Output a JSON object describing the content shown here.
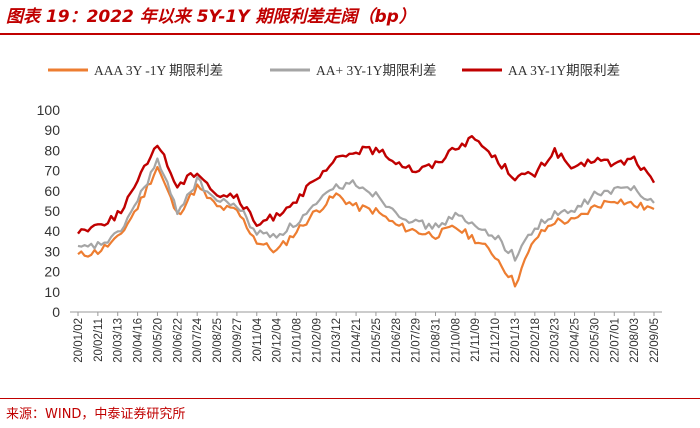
{
  "header": {
    "title": "图表 19：2022 年以来 5Y-1Y 期限利差走阔（bp）"
  },
  "footer": {
    "source": "来源：WIND，中泰证券研究所"
  },
  "colors": {
    "accent": "#c00000",
    "aaa": "#ed7d31",
    "aaplus": "#a5a5a5",
    "aa": "#c00000"
  },
  "chart_data": {
    "type": "line",
    "title": "2022 年以来 5Y-1Y 期限利差走阔（bp）",
    "xlabel": "",
    "ylabel": "",
    "ylim": [
      0,
      100
    ],
    "yticks": [
      0,
      10,
      20,
      30,
      40,
      50,
      60,
      70,
      80,
      90,
      100
    ],
    "categories": [
      "20/01/02",
      "20/02/11",
      "20/03/13",
      "20/04/16",
      "20/05/20",
      "20/06/22",
      "20/07/24",
      "20/08/25",
      "20/09/27",
      "20/11/04",
      "20/12/04",
      "21/01/08",
      "21/02/09",
      "21/03/12",
      "21/04/21",
      "21/05/25",
      "21/06/28",
      "21/07/29",
      "21/08/31",
      "21/10/08",
      "21/11/09",
      "21/12/10",
      "22/01/13",
      "22/02/18",
      "22/03/23",
      "22/04/25",
      "22/05/30",
      "22/07/01",
      "22/08/03",
      "22/09/05"
    ],
    "legend_position": "top",
    "series": [
      {
        "name": "AAA 3Y -1Y 期限利差",
        "color": "#ed7d31",
        "values": [
          28,
          30,
          36,
          52,
          72,
          48,
          62,
          52,
          50,
          35,
          30,
          40,
          50,
          58,
          52,
          50,
          43,
          40,
          38,
          42,
          36,
          28,
          14,
          36,
          45,
          45,
          52,
          56,
          53,
          51
        ]
      },
      {
        "name": "AA+ 3Y-1Y期限利差",
        "color": "#a5a5a5",
        "values": [
          31,
          33,
          38,
          55,
          75,
          50,
          65,
          55,
          53,
          39,
          38,
          44,
          53,
          62,
          64,
          58,
          50,
          44,
          42,
          48,
          42,
          38,
          27,
          42,
          48,
          50,
          58,
          60,
          62,
          54
        ]
      },
      {
        "name": "AA 3Y-1Y期限利差",
        "color": "#c00000",
        "values": [
          40,
          43,
          48,
          64,
          84,
          62,
          70,
          58,
          57,
          43,
          48,
          56,
          65,
          75,
          80,
          80,
          75,
          70,
          73,
          82,
          86,
          76,
          67,
          68,
          80,
          70,
          76,
          73,
          76,
          64
        ]
      }
    ]
  }
}
